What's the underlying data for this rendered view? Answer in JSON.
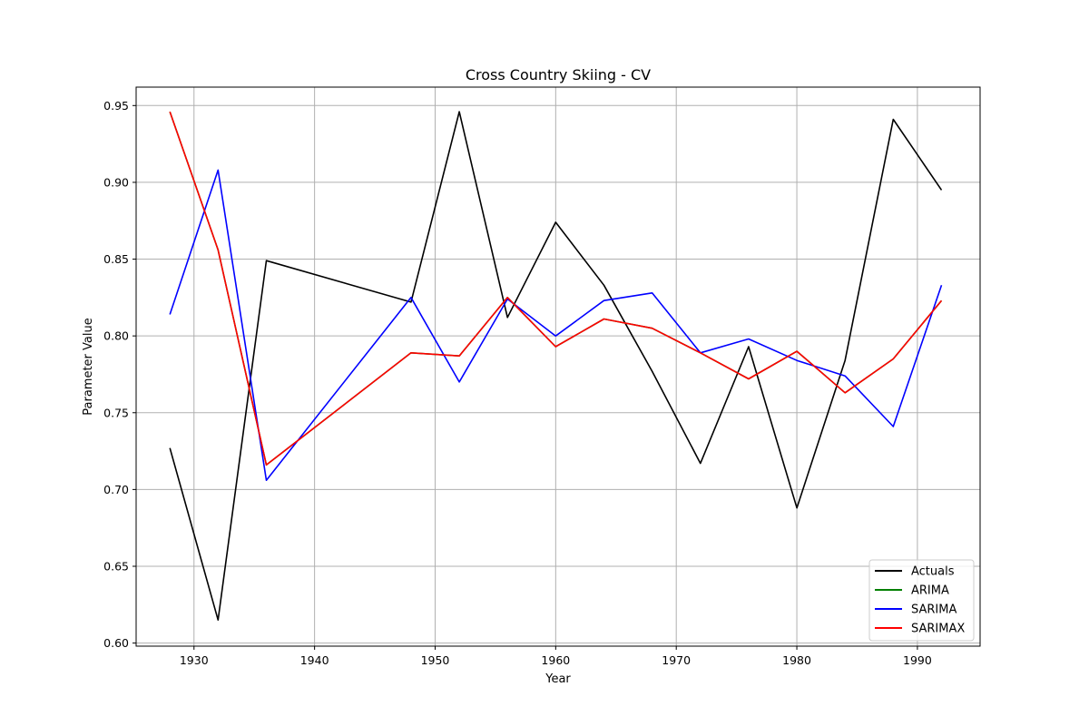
{
  "chart_data": {
    "type": "line",
    "title": "Cross Country Skiing - CV",
    "xlabel": "Year",
    "ylabel": "Parameter Value",
    "xlim": [
      1925.2,
      1995.2
    ],
    "ylim": [
      0.598,
      0.962
    ],
    "xticks": [
      1930,
      1940,
      1950,
      1960,
      1970,
      1980,
      1990
    ],
    "yticks": [
      0.6,
      0.65,
      0.7,
      0.75,
      0.8,
      0.85,
      0.9,
      0.95
    ],
    "grid": true,
    "legend_position": "lower-right",
    "x": [
      1928,
      1932,
      1936,
      1948,
      1952,
      1956,
      1960,
      1964,
      1968,
      1972,
      1976,
      1980,
      1984,
      1988,
      1992
    ],
    "series": [
      {
        "name": "Actuals",
        "color": "#000000",
        "values": [
          0.727,
          0.615,
          0.849,
          0.822,
          0.946,
          0.812,
          0.874,
          0.833,
          0.777,
          0.717,
          0.793,
          0.688,
          0.784,
          0.941,
          0.895
        ]
      },
      {
        "name": "ARIMA",
        "color": "#008000",
        "values": [
          0.946,
          0.856,
          0.716,
          0.789,
          0.787,
          0.825,
          0.793,
          0.811,
          0.805,
          0.789,
          0.772,
          0.79,
          0.763,
          0.785,
          0.823
        ]
      },
      {
        "name": "SARIMA",
        "color": "#0000ff",
        "values": [
          0.814,
          0.908,
          0.706,
          0.825,
          0.77,
          0.824,
          0.8,
          0.823,
          0.828,
          0.789,
          0.798,
          0.784,
          0.774,
          0.741,
          0.833
        ]
      },
      {
        "name": "SARIMAX",
        "color": "#ff0000",
        "values": [
          0.946,
          0.856,
          0.716,
          0.789,
          0.787,
          0.825,
          0.793,
          0.811,
          0.805,
          0.789,
          0.772,
          0.79,
          0.763,
          0.785,
          0.823
        ]
      }
    ]
  }
}
